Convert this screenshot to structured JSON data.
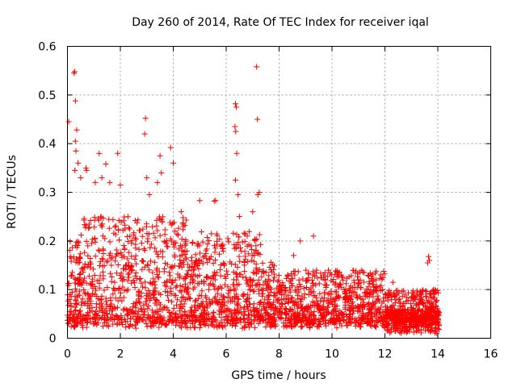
{
  "chart_data": {
    "type": "scatter",
    "title": "Day 260 of 2014, Rate Of TEC Index for receiver iqal",
    "xlabel": "GPS time / hours",
    "ylabel": "ROTI / TECUs",
    "xlim": [
      0,
      16
    ],
    "ylim": [
      0,
      0.6
    ],
    "xticks": [
      0,
      2,
      4,
      6,
      8,
      10,
      12,
      14,
      16
    ],
    "yticks": [
      0,
      0.1,
      0.2,
      0.3,
      0.4,
      0.5,
      0.6
    ],
    "grid": true,
    "marker": "+",
    "color": "#ff0000",
    "series": [
      {
        "name": "ROTI",
        "description_of_envelope": "Dense cloud between 0 and 14 h; typical upper envelope ~0.25-0.3 before 7 h, ~0.15 after 8 h",
        "points": [
          [
            0.05,
            0.445
          ],
          [
            0.25,
            0.545
          ],
          [
            0.27,
            0.548
          ],
          [
            0.3,
            0.488
          ],
          [
            0.35,
            0.428
          ],
          [
            0.3,
            0.405
          ],
          [
            0.32,
            0.385
          ],
          [
            0.4,
            0.36
          ],
          [
            0.28,
            0.345
          ],
          [
            0.5,
            0.33
          ],
          [
            0.7,
            0.35
          ],
          [
            0.72,
            0.345
          ],
          [
            1.2,
            0.38
          ],
          [
            1.45,
            0.358
          ],
          [
            1.9,
            0.38
          ],
          [
            1.05,
            0.32
          ],
          [
            1.3,
            0.33
          ],
          [
            1.6,
            0.32
          ],
          [
            2.0,
            0.315
          ],
          [
            2.95,
            0.452
          ],
          [
            2.92,
            0.42
          ],
          [
            3.0,
            0.33
          ],
          [
            3.5,
            0.375
          ],
          [
            3.55,
            0.34
          ],
          [
            3.4,
            0.32
          ],
          [
            3.9,
            0.392
          ],
          [
            4.0,
            0.36
          ],
          [
            3.1,
            0.295
          ],
          [
            4.3,
            0.26
          ],
          [
            5.0,
            0.283
          ],
          [
            5.6,
            0.283
          ],
          [
            5.55,
            0.282
          ],
          [
            6.35,
            0.482
          ],
          [
            6.38,
            0.475
          ],
          [
            6.33,
            0.435
          ],
          [
            6.36,
            0.425
          ],
          [
            6.4,
            0.38
          ],
          [
            6.35,
            0.325
          ],
          [
            6.45,
            0.295
          ],
          [
            6.5,
            0.25
          ],
          [
            7.15,
            0.558
          ],
          [
            7.18,
            0.45
          ],
          [
            7.25,
            0.3
          ],
          [
            7.2,
            0.295
          ],
          [
            7.0,
            0.26
          ],
          [
            8.55,
            0.17
          ],
          [
            8.8,
            0.2
          ],
          [
            9.3,
            0.21
          ],
          [
            13.65,
            0.168
          ],
          [
            13.68,
            0.16
          ],
          [
            13.62,
            0.155
          ],
          [
            12.3,
            0.115
          ],
          [
            11.0,
            0.12
          ]
        ]
      }
    ]
  }
}
